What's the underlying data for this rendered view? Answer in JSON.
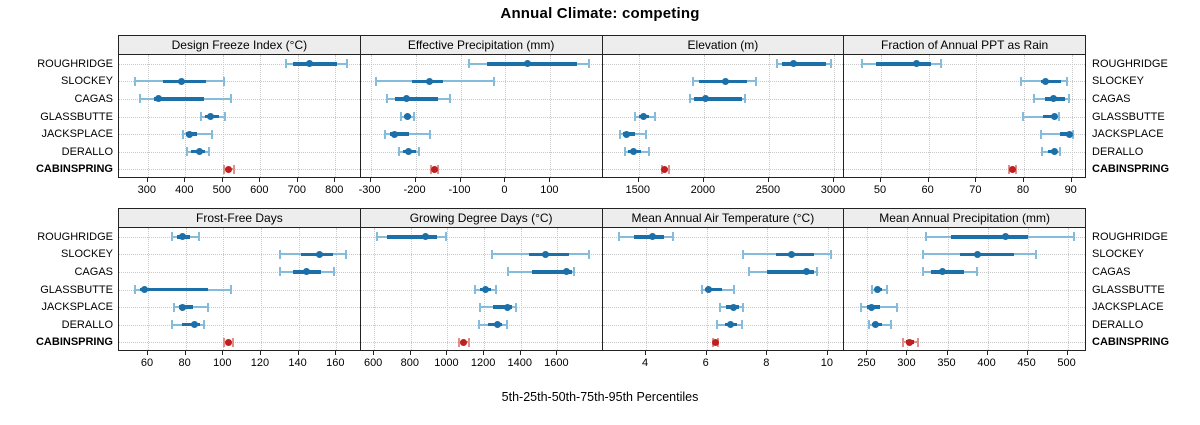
{
  "title": "Annual Climate: competing",
  "xlabel": "5th-25th-50th-75th-95th Percentiles",
  "sites": [
    "ROUGHRIDGE",
    "SLOCKEY",
    "CAGAS",
    "GLASSBUTTE",
    "JACKSPLACE",
    "DERALLO",
    "CABINSPRING"
  ],
  "highlight_site": "CABINSPRING",
  "colors": {
    "series_main": "#1c70a9",
    "series_light": "#85bcdc",
    "highlight_main": "#bf201f",
    "highlight_light": "#e0908c",
    "strip_bg": "#ededed",
    "grid": "#c9c9c9",
    "border": "#222222"
  },
  "chart_data": {
    "type": "dot-interval-trellis",
    "percentiles": [
      5,
      25,
      50,
      75,
      95
    ],
    "legend_note": "5th-25th-50th-75th-95th Percentiles",
    "grid": "dotted",
    "panels": [
      {
        "title": "Design Freeze Index (°C)",
        "xlim": [
          223,
          868
        ],
        "ticks": [
          300,
          400,
          500,
          600,
          700,
          800
        ],
        "values": [
          [
            669,
            686,
            732,
            804,
            832
          ],
          [
            267,
            340,
            389,
            455,
            504
          ],
          [
            278,
            316,
            329,
            449,
            522
          ],
          [
            442,
            452,
            467,
            490,
            505
          ],
          [
            393,
            401,
            412,
            432,
            470
          ],
          [
            405,
            415,
            439,
            452,
            463
          ],
          [
            503,
            509,
            516,
            523,
            529
          ]
        ]
      },
      {
        "title": "Effective Precipitation (mm)",
        "xlim": [
          -322,
          216
        ],
        "ticks": [
          -300,
          -200,
          -100,
          0,
          100
        ],
        "values": [
          [
            -82,
            -40,
            48,
            160,
            186
          ],
          [
            -288,
            -207,
            -170,
            -140,
            -26
          ],
          [
            -263,
            -245,
            -221,
            -150,
            -124
          ],
          [
            -233,
            -226,
            -218,
            -211,
            -204
          ],
          [
            -267,
            -258,
            -246,
            -215,
            -167
          ],
          [
            -237,
            -229,
            -215,
            -200,
            -193
          ],
          [
            -166,
            -162,
            -158,
            -153,
            -149
          ]
        ]
      },
      {
        "title": "Elevation (m)",
        "xlim": [
          1221,
          3079
        ],
        "ticks": [
          1500,
          2000,
          2500,
          3000
        ],
        "values": [
          [
            2559,
            2600,
            2688,
            2940,
            2975
          ],
          [
            1915,
            1960,
            2167,
            2330,
            2398
          ],
          [
            1890,
            1925,
            2013,
            2290,
            2313
          ],
          [
            1469,
            1500,
            1534,
            1580,
            1623
          ],
          [
            1352,
            1375,
            1403,
            1470,
            1552
          ],
          [
            1392,
            1420,
            1462,
            1520,
            1577
          ],
          [
            1675,
            1686,
            1698,
            1715,
            1731
          ]
        ]
      },
      {
        "title": "Fraction of Annual PPT as Rain",
        "xlim": [
          42.3,
          93
        ],
        "ticks": [
          50,
          60,
          70,
          80,
          90
        ],
        "values": [
          [
            46,
            49,
            57.5,
            60.5,
            62.6
          ],
          [
            79.3,
            83.5,
            84.6,
            87.7,
            89.1
          ],
          [
            82,
            84.5,
            86.2,
            88.5,
            89.5
          ],
          [
            79.8,
            84,
            86.3,
            87,
            87.4
          ],
          [
            83.5,
            87.5,
            89.6,
            90,
            90.2
          ],
          [
            83.8,
            85,
            86.3,
            87,
            87.6
          ],
          [
            76.9,
            77.2,
            77.6,
            78,
            78.3
          ]
        ]
      },
      {
        "title": "Frost-Free Days",
        "xlim": [
          44.6,
          173
        ],
        "ticks": [
          60,
          80,
          100,
          120,
          140,
          160
        ],
        "values": [
          [
            73,
            75.5,
            78.5,
            82.5,
            87
          ],
          [
            130,
            141,
            151,
            158,
            165
          ],
          [
            130,
            137,
            144,
            152,
            159
          ],
          [
            53,
            55.5,
            58,
            92,
            104
          ],
          [
            74,
            76.5,
            78.5,
            84,
            92
          ],
          [
            72.5,
            78,
            84.5,
            87.5,
            89.5
          ],
          [
            100.5,
            101.5,
            102.5,
            103.8,
            105
          ]
        ]
      },
      {
        "title": "Growing Degree Days (°C)",
        "xlim": [
          527,
          1846
        ],
        "ticks": [
          600,
          800,
          1000,
          1200,
          1400,
          1600
        ],
        "values": [
          [
            618,
            670,
            880,
            945,
            994
          ],
          [
            1241,
            1445,
            1536,
            1663,
            1772
          ],
          [
            1329,
            1463,
            1650,
            1681,
            1690
          ],
          [
            1150,
            1178,
            1205,
            1235,
            1263
          ],
          [
            1178,
            1250,
            1327,
            1355,
            1372
          ],
          [
            1172,
            1220,
            1272,
            1300,
            1327
          ],
          [
            1063,
            1076,
            1090,
            1104,
            1118
          ]
        ]
      },
      {
        "title": "Mean Annual Air Temperature (°C)",
        "xlim": [
          2.56,
          10.54
        ],
        "ticks": [
          4,
          6,
          8,
          10
        ],
        "values": [
          [
            3.1,
            3.6,
            4.2,
            4.6,
            4.9
          ],
          [
            7.2,
            8.3,
            8.8,
            9.54,
            10.1
          ],
          [
            7.4,
            8.0,
            9.3,
            9.55,
            9.63
          ],
          [
            5.85,
            5.95,
            6.05,
            6.5,
            6.9
          ],
          [
            6.45,
            6.65,
            6.9,
            7.05,
            7.2
          ],
          [
            6.35,
            6.6,
            6.8,
            7.0,
            7.17
          ],
          [
            6.22,
            6.25,
            6.29,
            6.33,
            6.36
          ]
        ]
      },
      {
        "title": "Mean Annual Precipitation (mm)",
        "xlim": [
          221,
          523
        ],
        "ticks": [
          250,
          300,
          350,
          400,
          450,
          500
        ],
        "values": [
          [
            323,
            354,
            422,
            450,
            508
          ],
          [
            320,
            365,
            387,
            433,
            460
          ],
          [
            319,
            329,
            344,
            371,
            387
          ],
          [
            256,
            260,
            263,
            268,
            275
          ],
          [
            242,
            249,
            255,
            266,
            287
          ],
          [
            252,
            256,
            260,
            268,
            280
          ],
          [
            294,
            298,
            303,
            308,
            313
          ]
        ]
      }
    ]
  }
}
